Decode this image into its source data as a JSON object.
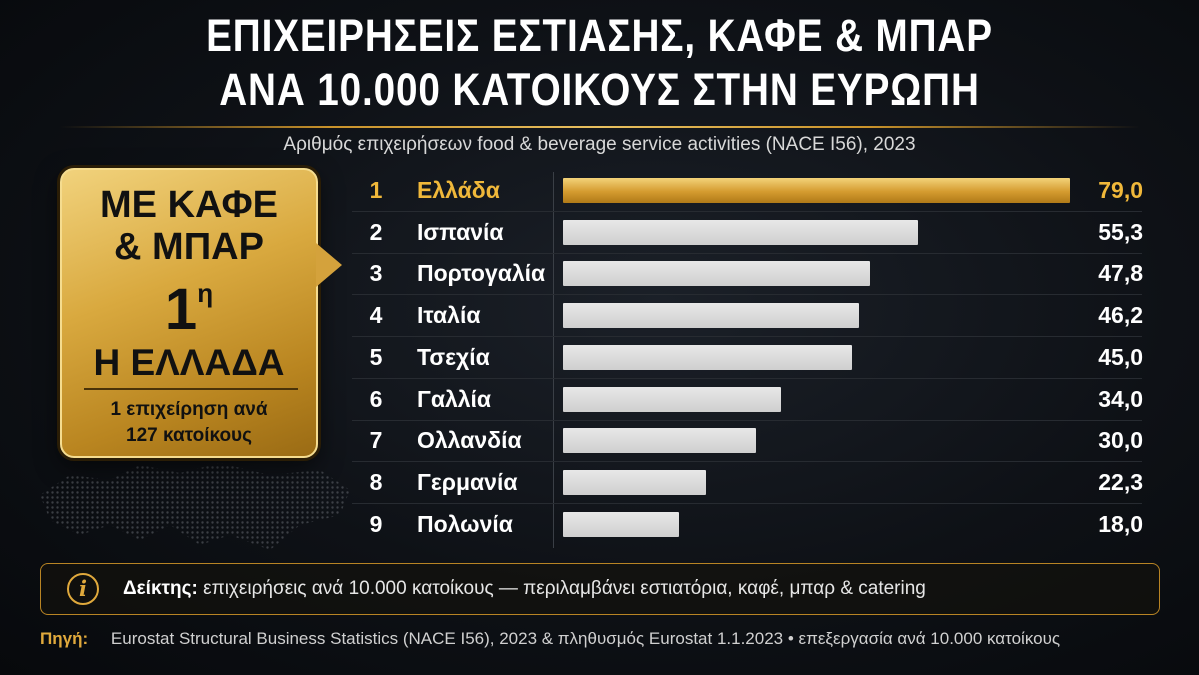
{
  "title_line1": "ΕΠΙΧΕΙΡΗΣΕΙΣ ΕΣΤΙΑΣΗΣ, ΚΑΦΕ & ΜΠΑΡ",
  "title_line2": "ΑΝΑ 10.000 ΚΑΤΟΙΚΟΥΣ ΣΤΗΝ ΕΥΡΩΠΗ",
  "subtitle": "Αριθμός επιχειρήσεων food & beverage service activities (NACE I56), 2023",
  "badge": {
    "line1": "ΜΕ ΚΑΦΕ",
    "line2": "& ΜΠΑΡ",
    "rank": "1",
    "rank_sup": "η",
    "line4": "Η ΕΛΛΑΔΑ",
    "note1": "1 επιχείρηση ανά",
    "note2": "127 κατοίκους"
  },
  "colors": {
    "gold": "#d9a93f",
    "bar_gray": "#dcdcdc",
    "highlight_text": "#f0b83a",
    "background": "#0e1116"
  },
  "chart_data": {
    "type": "bar",
    "orientation": "horizontal",
    "ranks": [
      "1",
      "2",
      "3",
      "4",
      "5",
      "6",
      "7",
      "8",
      "9"
    ],
    "categories": [
      "Ελλάδα",
      "Ισπανία",
      "Πορτογαλία",
      "Ιταλία",
      "Τσεχία",
      "Γαλλία",
      "Ολλανδία",
      "Γερμανία",
      "Πολωνία"
    ],
    "values": [
      79.0,
      55.3,
      47.8,
      46.2,
      45.0,
      34.0,
      30.0,
      22.3,
      18.0
    ],
    "value_labels": [
      "79,0",
      "55,3",
      "47,8",
      "46,2",
      "45,0",
      "34,0",
      "30,0",
      "22,3",
      "18,0"
    ],
    "highlight_index": 0,
    "xlim": [
      0,
      79
    ],
    "grid": false
  },
  "info": {
    "icon": "info-icon",
    "label": "Δείκτης:",
    "text": "επιχειρήσεις ανά 10.000 κατοίκους — περιλαμβάνει εστιατόρια, καφέ, μπαρ & catering"
  },
  "source": {
    "label": "Πηγή:",
    "text": "Eurostat Structural Business Statistics (NACE I56), 2023 & πληθυσμός Eurostat 1.1.2023 • επεξεργασία ανά 10.000 κατοίκους"
  }
}
